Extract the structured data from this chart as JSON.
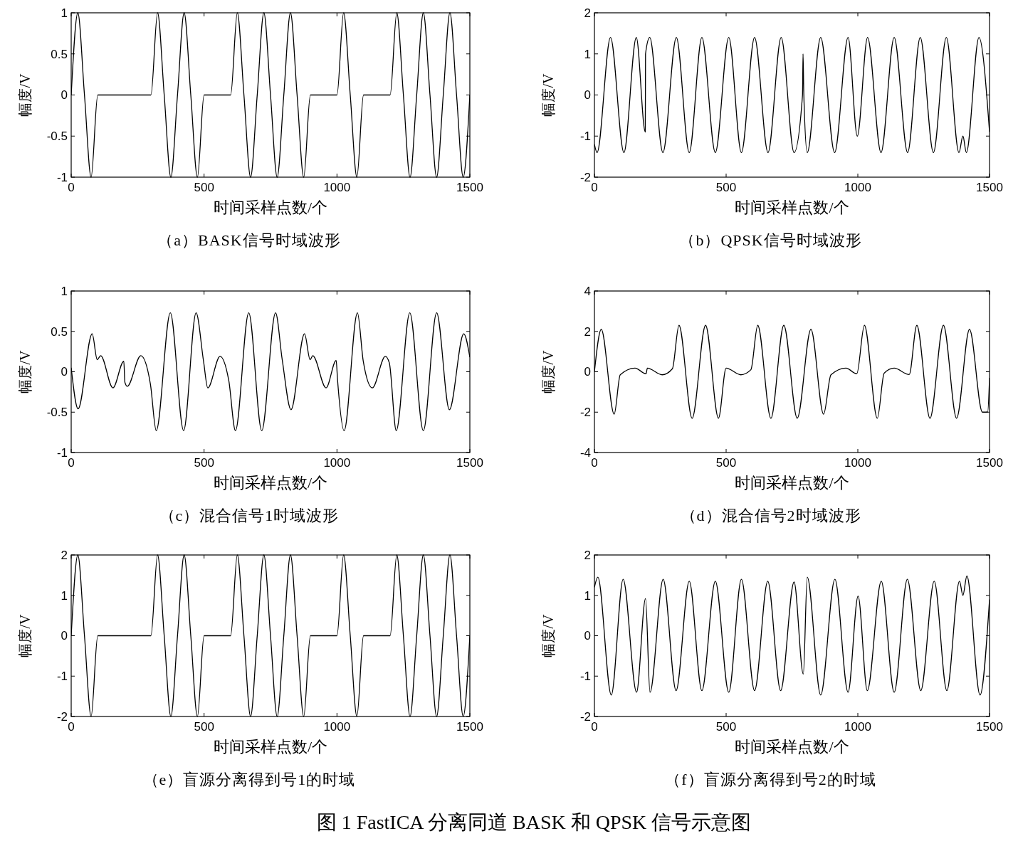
{
  "chart_data": [
    {
      "type": "line",
      "title": "（a）BASK信号时域波形",
      "xlabel": "时间采样点数/个",
      "ylabel": "幅度/V",
      "color": "#000000",
      "annotations": [
        "图 1  FastICA 分离同道 BASK 和 QPSK 信号示意图"
      ],
      "xlim": [
        0,
        1500
      ],
      "xticks": [
        0,
        500,
        1000,
        1500
      ],
      "ylim": [
        -1,
        1
      ],
      "yticks": [
        -1,
        -0.5,
        0,
        0.5,
        1
      ],
      "x": [
        0,
        25,
        50,
        75,
        100,
        300,
        325,
        350,
        375,
        400,
        425,
        450,
        475,
        500,
        600,
        625,
        650,
        675,
        700,
        725,
        750,
        775,
        800,
        825,
        850,
        875,
        900,
        1000,
        1025,
        1050,
        1075,
        1100,
        1200,
        1225,
        1250,
        1275,
        1300,
        1325,
        1350,
        1375,
        1400,
        1425,
        1450,
        1475,
        1500
      ],
      "values": [
        0,
        1,
        0,
        -1,
        0,
        0,
        1,
        0,
        -1,
        0,
        1,
        0,
        -1,
        0,
        0,
        1,
        0,
        -1,
        0,
        1,
        0,
        -1,
        0,
        1,
        0,
        -1,
        0,
        0,
        1,
        0,
        -1,
        0,
        0,
        1,
        0,
        -1,
        0,
        1,
        0,
        -1,
        0,
        1,
        0,
        -1,
        0
      ]
    },
    {
      "type": "line",
      "title": "（b）QPSK信号时域波形",
      "xlabel": "时间采样点数/个",
      "ylabel": "幅度/V",
      "color": "#000000",
      "xlim": [
        0,
        1500
      ],
      "xticks": [
        0,
        500,
        1000,
        1500
      ],
      "ylim": [
        -2,
        2
      ],
      "yticks": [
        -2,
        -1,
        0,
        1,
        2
      ],
      "x": [
        0,
        10,
        61,
        112,
        159,
        193,
        194,
        210,
        260,
        311,
        360,
        408,
        459,
        510,
        558,
        608,
        659,
        709,
        758,
        790,
        792,
        795,
        808,
        859,
        912,
        963,
        998,
        1037,
        1088,
        1138,
        1189,
        1237,
        1287,
        1336,
        1384,
        1399,
        1412,
        1460,
        1500
      ],
      "values": [
        -1.2,
        -1.4,
        1.4,
        -1.4,
        1.4,
        -0.9,
        1,
        1.4,
        -1.4,
        1.4,
        -1.4,
        1.4,
        -1.4,
        1.4,
        -1.4,
        1.4,
        -1.4,
        1.4,
        -1.4,
        0,
        1,
        0,
        -1.4,
        1.4,
        -1.4,
        1.4,
        -1,
        1.4,
        -1.4,
        1.4,
        -1.4,
        1.4,
        -1.4,
        1.4,
        -1.4,
        -1,
        -1.4,
        1.4,
        -0.9
      ]
    },
    {
      "type": "line",
      "title": "（c）混合信号1时域波形",
      "xlabel": "时间采样点数/个",
      "ylabel": "幅度/V",
      "color": "#000000",
      "xlim": [
        0,
        1500
      ],
      "xticks": [
        0,
        500,
        1000,
        1500
      ],
      "ylim": [
        -1,
        1
      ],
      "yticks": [
        -1,
        -0.5,
        0,
        0.5,
        1
      ],
      "x": [
        0,
        26,
        79,
        98,
        111,
        157,
        198,
        202,
        211,
        262,
        298,
        320,
        373,
        423,
        470,
        498,
        514,
        560,
        593,
        618,
        668,
        717,
        769,
        794,
        827,
        878,
        899,
        909,
        959,
        997,
        1002,
        1027,
        1077,
        1099,
        1133,
        1182,
        1197,
        1223,
        1274,
        1325,
        1375,
        1423,
        1477,
        1500
      ],
      "values": [
        0.05,
        -0.46,
        0.47,
        0.15,
        0.2,
        -0.2,
        0.13,
        -0.13,
        -0.18,
        0.2,
        -0.15,
        -0.73,
        0.73,
        -0.73,
        0.73,
        0.13,
        -0.2,
        0.19,
        -0.11,
        -0.73,
        0.73,
        -0.73,
        0.73,
        0.15,
        -0.47,
        0.47,
        0.15,
        0.2,
        -0.2,
        0.14,
        -0.09,
        -0.73,
        0.73,
        0.13,
        -0.2,
        0.19,
        0.11,
        -0.73,
        0.73,
        -0.73,
        0.73,
        -0.47,
        0.47,
        0.18
      ]
    },
    {
      "type": "line",
      "title": "（d）混合信号2时域波形",
      "xlabel": "时间采样点数/个",
      "ylabel": "幅度/V",
      "color": "#000000",
      "xlim": [
        0,
        1500
      ],
      "xticks": [
        0,
        500,
        1000,
        1500
      ],
      "ylim": [
        -4,
        4
      ],
      "yticks": [
        -4,
        -2,
        0,
        2,
        4
      ],
      "x": [
        0,
        26,
        75,
        98,
        154,
        196,
        201,
        257,
        296,
        321,
        371,
        422,
        471,
        500,
        556,
        594,
        620,
        670,
        719,
        770,
        822,
        870,
        898,
        955,
        996,
        1025,
        1074,
        1100,
        1138,
        1195,
        1224,
        1274,
        1325,
        1375,
        1424,
        1473,
        1493,
        1500
      ],
      "values": [
        0,
        2.1,
        -2.1,
        -0.15,
        0.18,
        -0.1,
        0.18,
        -0.15,
        0.15,
        2.3,
        -2.3,
        2.3,
        -2.3,
        0.18,
        -0.15,
        0.1,
        2.3,
        -2.3,
        2.3,
        -2.3,
        2.1,
        -2.1,
        -0.15,
        0.18,
        -0.1,
        2.3,
        -2.3,
        -0.07,
        0.18,
        -0.14,
        2.3,
        -2.3,
        2.3,
        -2.3,
        2.1,
        -2,
        -2,
        -0.3
      ]
    },
    {
      "type": "line",
      "title": "（e）盲源分离得到号1的时域",
      "xlabel": "时间采样点数/个",
      "ylabel": "幅度/V",
      "color": "#000000",
      "xlim": [
        0,
        1500
      ],
      "xticks": [
        0,
        500,
        1000,
        1500
      ],
      "ylim": [
        -2,
        2
      ],
      "yticks": [
        -2,
        -1,
        0,
        1,
        2
      ],
      "x": [
        0,
        25,
        50,
        75,
        100,
        300,
        325,
        350,
        375,
        400,
        425,
        450,
        475,
        500,
        600,
        625,
        650,
        675,
        700,
        725,
        750,
        775,
        800,
        825,
        850,
        875,
        900,
        1000,
        1025,
        1050,
        1075,
        1100,
        1200,
        1225,
        1250,
        1275,
        1300,
        1325,
        1350,
        1375,
        1400,
        1425,
        1450,
        1475,
        1500
      ],
      "values": [
        0,
        2,
        0,
        -2,
        0,
        0,
        2,
        0,
        -2,
        0,
        2,
        0,
        -2,
        0,
        0,
        2,
        0,
        -2,
        0,
        2,
        0,
        -2,
        0,
        2,
        0,
        -2,
        0,
        0,
        2,
        0,
        -2,
        0,
        0,
        2,
        0,
        -2,
        0,
        2,
        0,
        -2,
        0,
        2,
        0,
        -2,
        0
      ]
    },
    {
      "type": "line",
      "title": "（f）盲源分离得到号2的时域",
      "xlabel": "时间采样点数/个",
      "ylabel": "幅度/V",
      "color": "#000000",
      "xlim": [
        0,
        1500
      ],
      "xticks": [
        0,
        500,
        1000,
        1500
      ],
      "ylim": [
        -2,
        2
      ],
      "yticks": [
        -2,
        -1,
        0,
        1,
        2
      ],
      "x": [
        0,
        13,
        64,
        109,
        160,
        194,
        211,
        261,
        310,
        360,
        408,
        459,
        510,
        558,
        608,
        658,
        707,
        758,
        793,
        808,
        859,
        913,
        963,
        1001,
        1036,
        1089,
        1138,
        1188,
        1239,
        1290,
        1338,
        1386,
        1399,
        1414,
        1464,
        1500
      ],
      "values": [
        1.2,
        1.45,
        -1.47,
        1.4,
        -1.4,
        0.92,
        -1.4,
        1.4,
        -1.36,
        1.35,
        -1.36,
        1.35,
        -1.4,
        1.4,
        -1.36,
        1.35,
        -1.36,
        1.33,
        -0.95,
        1.45,
        -1.47,
        1.4,
        -1.4,
        0.98,
        -1.36,
        1.35,
        -1.4,
        1.4,
        -1.36,
        1.35,
        -1.36,
        1.35,
        1,
        1.48,
        -1.47,
        0.9
      ]
    }
  ]
}
